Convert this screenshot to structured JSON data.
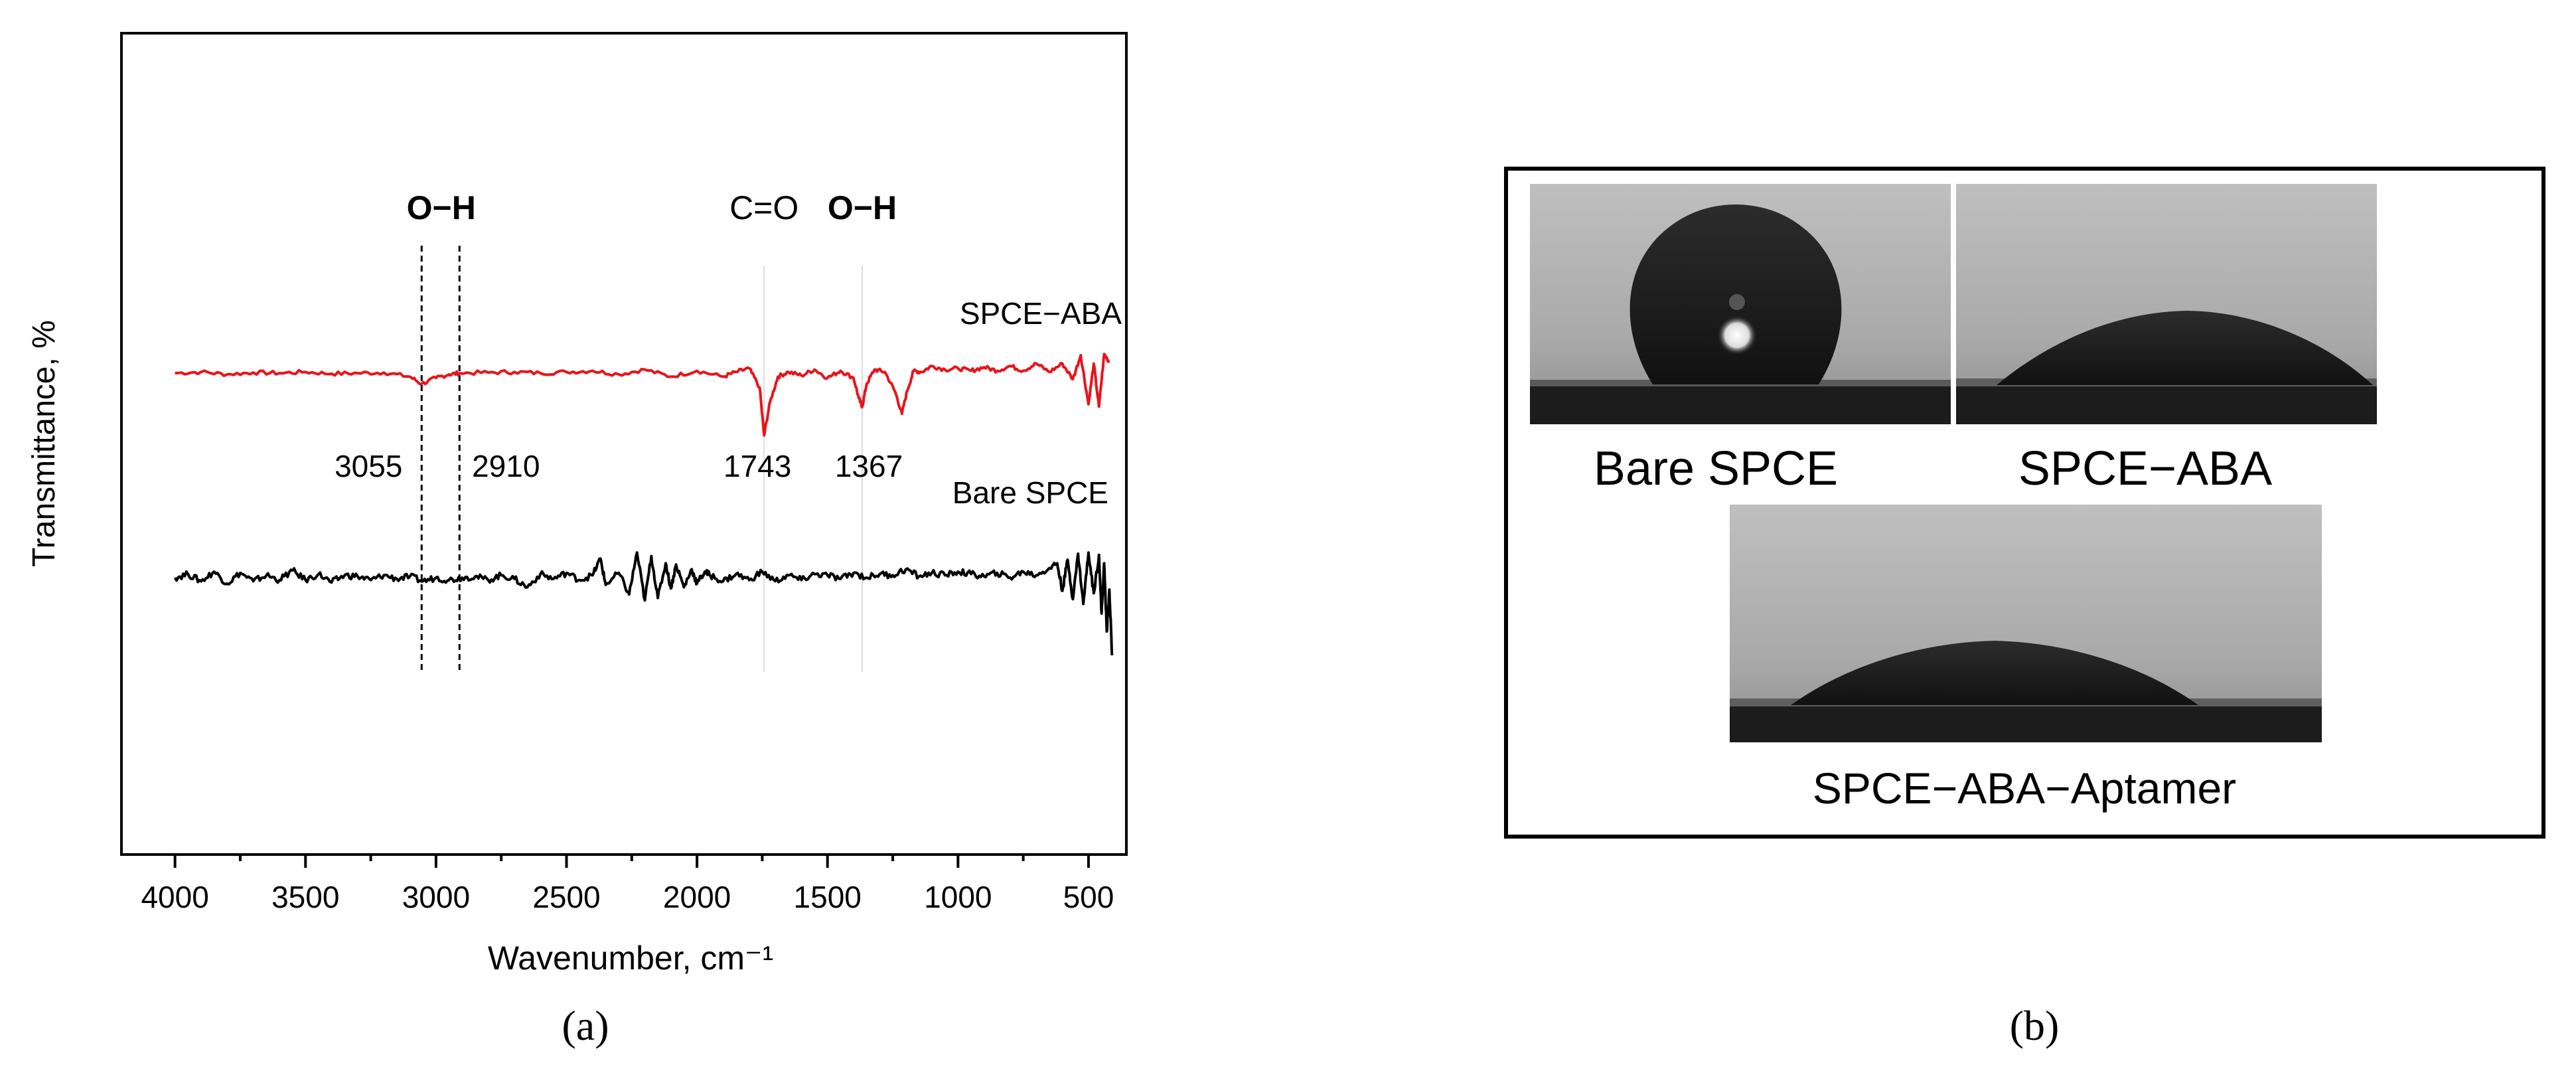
{
  "panel_a": {
    "caption": "(a)",
    "chart_data": {
      "type": "line",
      "xlabel": "Wavenumber, cm⁻¹",
      "ylabel": "Transmittance, %",
      "xlim": [
        4200,
        360
      ],
      "x_reversed": true,
      "x_ticks": [
        4000,
        3500,
        3000,
        2500,
        2000,
        1500,
        1000,
        500
      ],
      "x_tick_labels": [
        "4000",
        "3500",
        "3000",
        "2500",
        "2000",
        "1500",
        "1000",
        "500"
      ],
      "grid": false,
      "series": [
        {
          "name": "SPCE−ABA",
          "color": "#e8141b",
          "x": [
            4000,
            3900,
            3800,
            3700,
            3600,
            3500,
            3400,
            3300,
            3200,
            3100,
            3055,
            3000,
            2950,
            2910,
            2800,
            2700,
            2600,
            2500,
            2400,
            2300,
            2200,
            2100,
            2000,
            1900,
            1850,
            1800,
            1760,
            1743,
            1720,
            1690,
            1650,
            1600,
            1550,
            1500,
            1450,
            1400,
            1380,
            1367,
            1350,
            1320,
            1280,
            1240,
            1215,
            1195,
            1170,
            1140,
            1100,
            1050,
            1000,
            950,
            900,
            850,
            800,
            750,
            700,
            650,
            600,
            560,
            530,
            500,
            480,
            460,
            440,
            420
          ],
          "y": [
            0,
            0.1,
            -0.1,
            0.05,
            0,
            0.1,
            -0.05,
            0,
            0.05,
            -0.3,
            -0.9,
            -0.4,
            -0.1,
            0,
            0.05,
            0.1,
            0,
            0.1,
            0.2,
            -0.1,
            0.3,
            -0.3,
            0.2,
            -0.3,
            0.1,
            0.4,
            -1.2,
            -5.2,
            -2.4,
            -0.3,
            0.1,
            -0.2,
            0.3,
            -0.4,
            0.2,
            -0.4,
            -2.1,
            -2.8,
            -0.9,
            0.3,
            0.1,
            -1.6,
            -3.4,
            -1.5,
            0.2,
            0.1,
            0.6,
            0.3,
            0.4,
            0.2,
            0.5,
            0.2,
            0.6,
            0.2,
            0.8,
            0.1,
            0.8,
            -0.5,
            1.5,
            -2.6,
            0.8,
            -2.8,
            1.6,
            0.9
          ]
        },
        {
          "name": "Bare SPCE",
          "color": "#000000",
          "x": [
            4000,
            3950,
            3900,
            3850,
            3800,
            3750,
            3700,
            3650,
            3600,
            3550,
            3500,
            3450,
            3400,
            3350,
            3300,
            3250,
            3200,
            3150,
            3100,
            3050,
            3000,
            2950,
            2900,
            2850,
            2800,
            2750,
            2700,
            2650,
            2600,
            2550,
            2500,
            2450,
            2400,
            2370,
            2350,
            2300,
            2260,
            2230,
            2200,
            2175,
            2150,
            2120,
            2100,
            2080,
            2050,
            2020,
            2000,
            1970,
            1950,
            1900,
            1850,
            1800,
            1750,
            1700,
            1650,
            1600,
            1550,
            1500,
            1450,
            1400,
            1350,
            1300,
            1250,
            1200,
            1150,
            1100,
            1050,
            1000,
            950,
            900,
            850,
            800,
            750,
            700,
            650,
            620,
            600,
            580,
            560,
            540,
            520,
            500,
            480,
            460,
            450,
            440,
            430,
            420,
            410
          ],
          "y": [
            0,
            0.3,
            -0.3,
            0.5,
            -0.5,
            0.4,
            -0.3,
            0.2,
            -0.2,
            0.6,
            -0.2,
            0.3,
            -0.4,
            0.2,
            0.1,
            -0.2,
            0.2,
            -0.1,
            0.1,
            -0.3,
            0,
            -0.2,
            0,
            0.1,
            -0.2,
            0.2,
            -0.1,
            -0.8,
            0.3,
            -0.1,
            0.4,
            -0.2,
            0.2,
            1.6,
            -0.6,
            0.4,
            -1.4,
            2.1,
            -1.9,
            1.8,
            -1.7,
            1.2,
            -0.9,
            1.1,
            -0.8,
            0.7,
            -0.5,
            0.5,
            0.2,
            -0.3,
            0.3,
            -0.2,
            0.5,
            -0.3,
            0.2,
            -0.2,
            0.3,
            0.2,
            -0.1,
            0.4,
            0,
            0.3,
            0.2,
            0.7,
            0.1,
            0.4,
            0.2,
            0.5,
            0.3,
            0.1,
            0.4,
            0,
            0.5,
            0.2,
            0.8,
            1.2,
            -1.1,
            1.5,
            -1.8,
            2.0,
            -2.2,
            2.1,
            -1.3,
            1.9,
            -3.0,
            1.2,
            -4.5,
            -1.0,
            -6.5
          ]
        }
      ],
      "series_labels": [
        "SPCE−ABA",
        "Bare SPCE"
      ],
      "annotations": {
        "group_labels": [
          {
            "text": "O−H",
            "x": 2980
          },
          {
            "text": "C=O",
            "x": 1743
          },
          {
            "text": "O−H",
            "x": 1367
          }
        ],
        "peak_labels": [
          {
            "text": "3055",
            "x": 3055
          },
          {
            "text": "2910",
            "x": 2910
          },
          {
            "text": "1743",
            "x": 1743
          },
          {
            "text": "1367",
            "x": 1367
          }
        ],
        "dashed_lines": [
          3055,
          2910
        ],
        "faint_lines": [
          1743,
          1367
        ]
      }
    }
  },
  "panel_b": {
    "caption": "(b)",
    "images": [
      {
        "label": "Bare SPCE",
        "contact_angle_deg": 140
      },
      {
        "label": "SPCE−ABA",
        "contact_angle_deg": 40
      },
      {
        "label": "SPCE−ABA−Aptamer",
        "contact_angle_deg": 38
      }
    ]
  }
}
